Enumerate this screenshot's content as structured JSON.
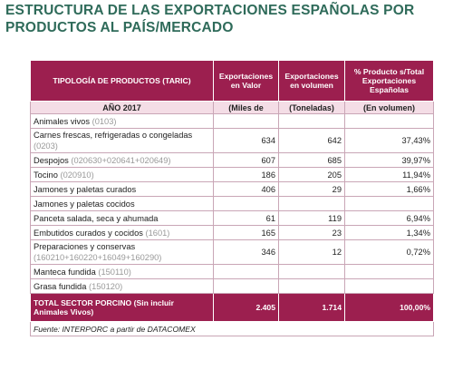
{
  "header": {
    "title": "ESTRUCTURA DE LAS EXPORTACIONES ESPAÑOLAS POR PRODUCTOS AL PAÍS/MERCADO"
  },
  "table": {
    "columns": [
      "TIPOLOGÍA DE PRODUCTOS (TARIC)",
      "Exportaciones en Valor",
      "Exportaciones en volumen",
      "% Producto s/Total Exportaciones Españolas"
    ],
    "subheader": [
      "AÑO 2017",
      "(Miles de",
      "(Toneladas)",
      "(En volumen)"
    ],
    "rows": [
      {
        "name": "Animales vivos",
        "code": "(0103)"
      },
      {
        "name": "Carnes frescas, refrigeradas o congeladas",
        "code": "(0203)",
        "valor": "634",
        "volumen": "642",
        "pct": "37,43%"
      },
      {
        "name": "Despojos",
        "code": "(020630+020641+020649)",
        "valor": "607",
        "volumen": "685",
        "pct": "39,97%"
      },
      {
        "name": "Tocino",
        "code": "(020910)",
        "valor": "186",
        "volumen": "205",
        "pct": "11,94%"
      },
      {
        "name": "Jamones y paletas curados",
        "valor": "406",
        "volumen": "29",
        "pct": "1,66%"
      },
      {
        "name": "Jamones y paletas cocidos"
      },
      {
        "name": "Panceta salada, seca y ahumada",
        "valor": "61",
        "volumen": "119",
        "pct": "6,94%"
      },
      {
        "name": "Embutidos curados y cocidos",
        "code": "(1601)",
        "valor": "165",
        "volumen": "23",
        "pct": "1,34%"
      },
      {
        "name": "Preparaciones y conservas",
        "code": "(160210+160220+16049+160290)",
        "valor": "346",
        "volumen": "12",
        "pct": "0,72%"
      },
      {
        "name": "Manteca fundida",
        "code": "(150110)"
      },
      {
        "name": "Grasa fundida",
        "code": "(150120)"
      }
    ],
    "total": {
      "name": "TOTAL SECTOR PORCINO (Sin incluir Animales Vivos)",
      "valor": "2.405",
      "volumen": "1.714",
      "pct": "100,00%"
    },
    "source": "Fuente:  INTERPORC a partir de DATACOMEX"
  }
}
